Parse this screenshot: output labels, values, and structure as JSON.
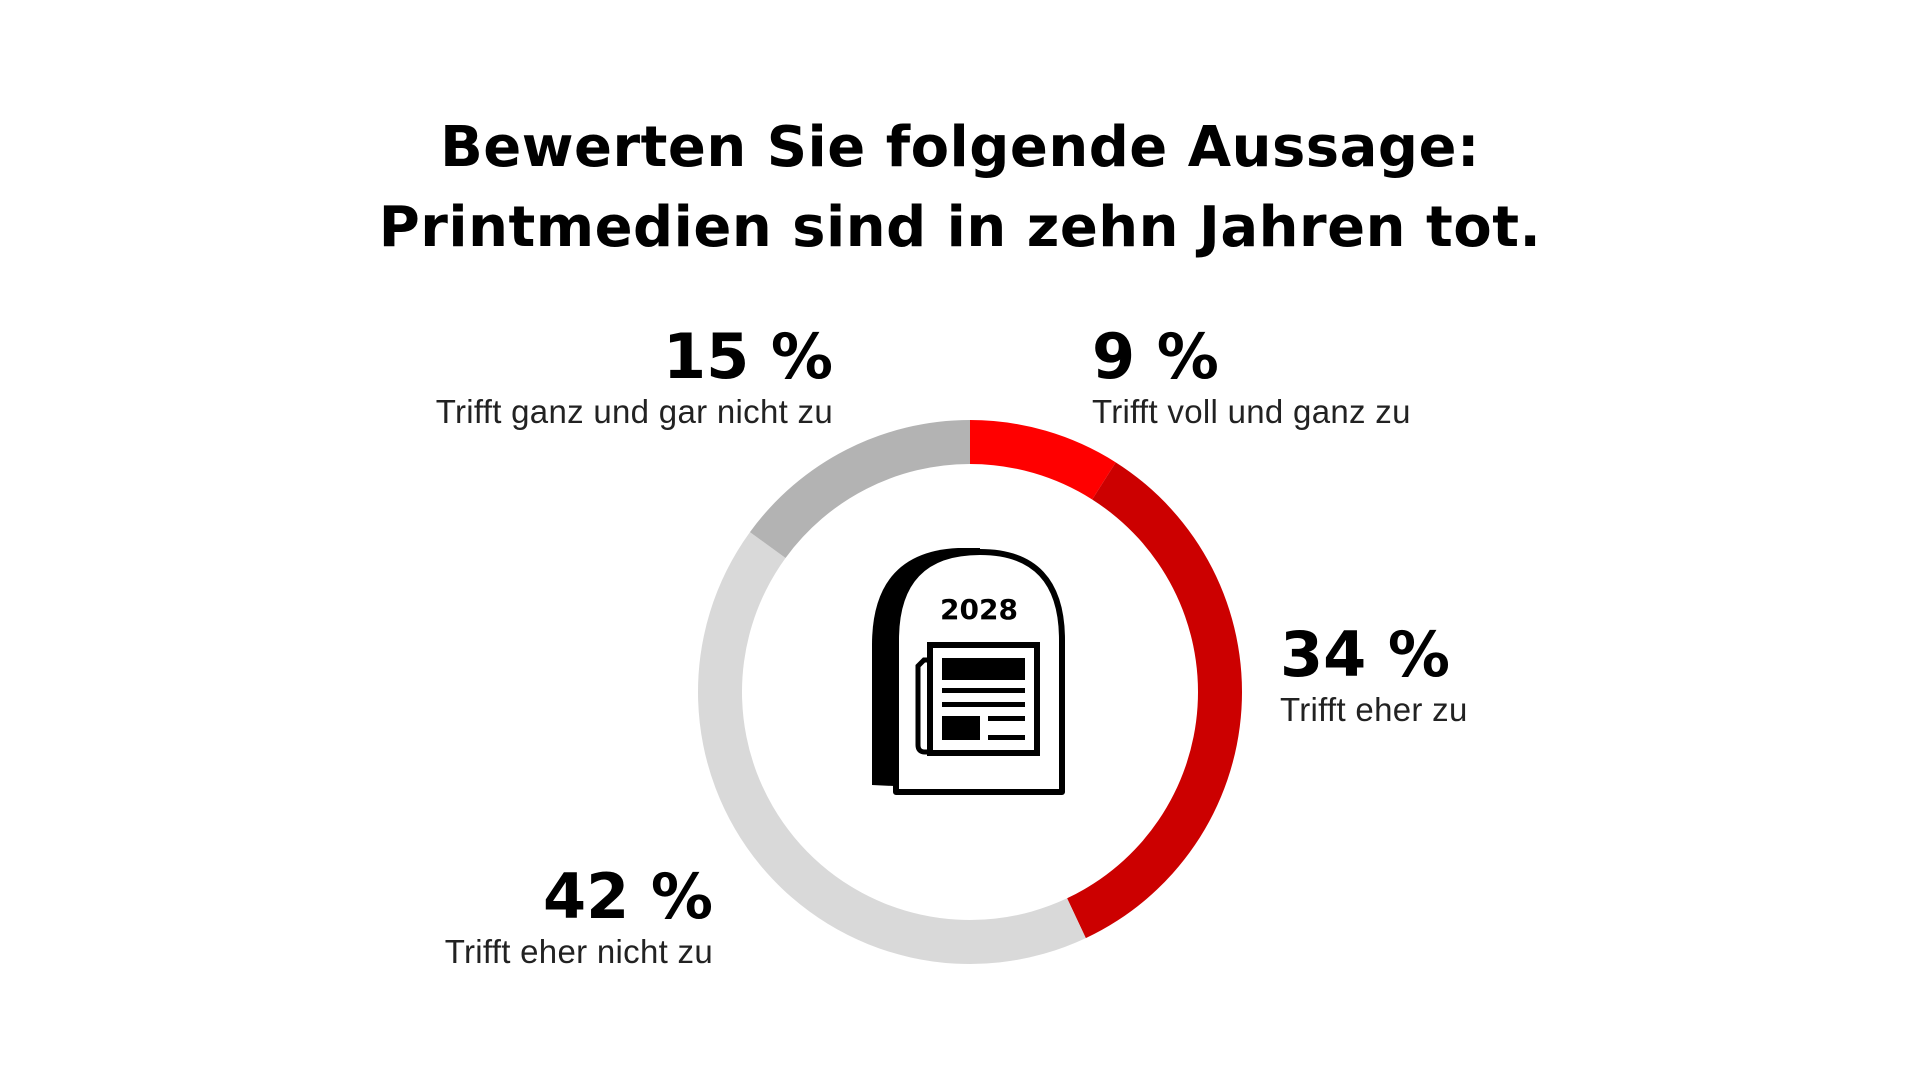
{
  "chart_data": {
    "type": "pie",
    "title": [
      "Bewerten Sie folgende Aussage:",
      "Printmedien sind in zehn Jahren tot."
    ],
    "slices": [
      {
        "label": "Trifft voll und ganz zu",
        "value": 9,
        "display": "9 %",
        "color": "#ff0000"
      },
      {
        "label": "Trifft eher zu",
        "value": 34,
        "display": "34 %",
        "color": "#cc0000"
      },
      {
        "label": "Trifft eher nicht zu",
        "value": 42,
        "display": "42 %",
        "color": "#d9d9d9"
      },
      {
        "label": "Trifft ganz und gar nicht zu",
        "value": 15,
        "display": "15 %",
        "color": "#b3b3b3"
      }
    ],
    "center_icon": {
      "name": "tombstone-newspaper-icon",
      "text": "2028"
    }
  }
}
